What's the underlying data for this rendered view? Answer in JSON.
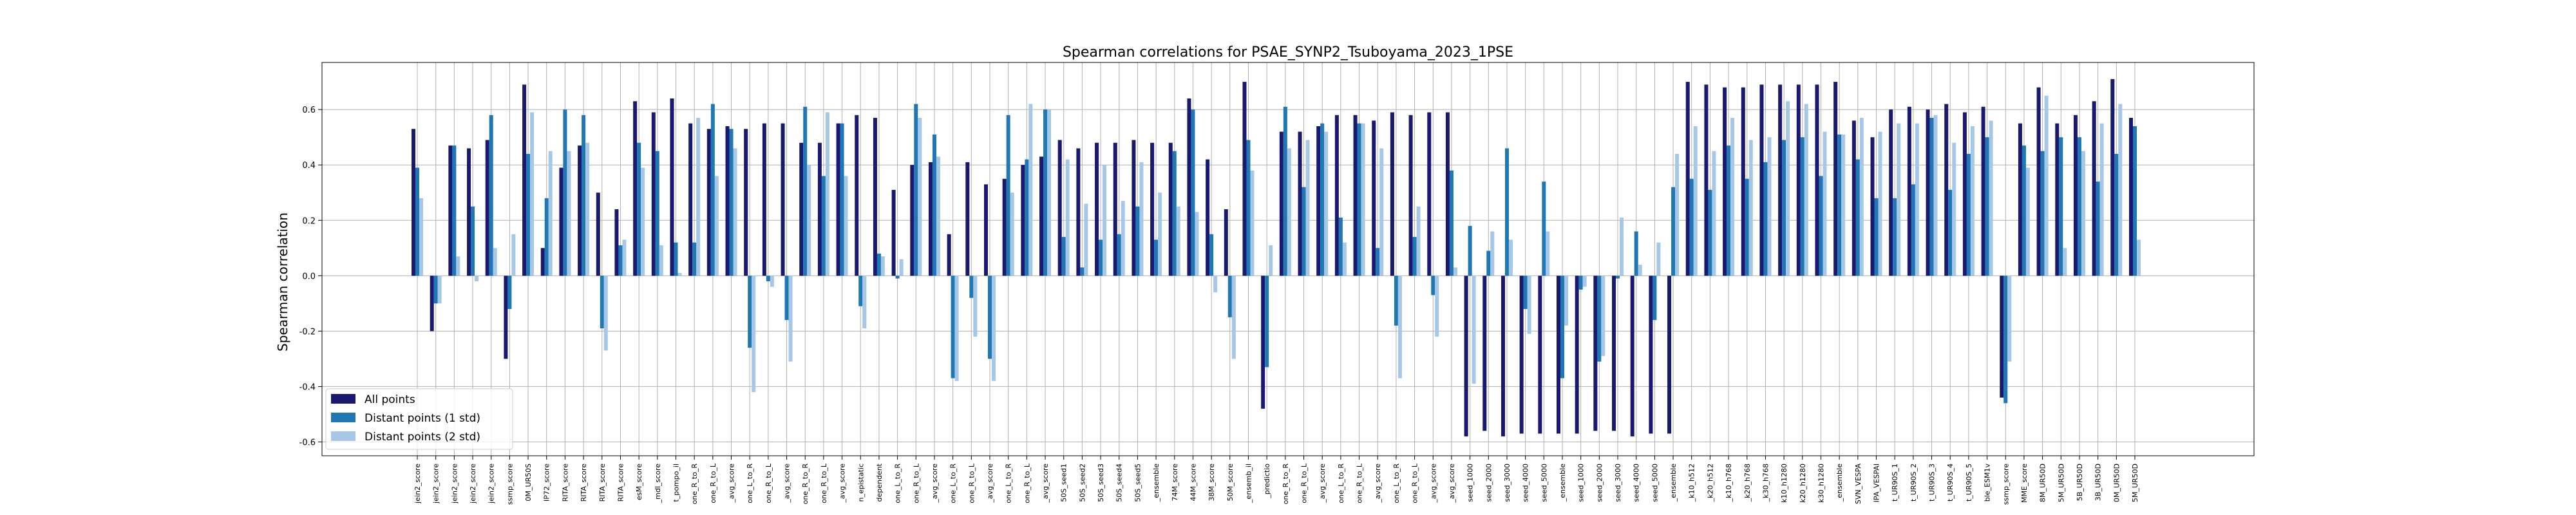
{
  "chart_data": {
    "type": "bar",
    "title": "Spearman correlations for PSAE_SYNP2_Tsuboyama_2023_1PSE",
    "xlabel": "",
    "ylabel": "Spearman correlation",
    "ylim": [
      -0.65,
      0.77
    ],
    "yticks": [
      -0.6,
      -0.4,
      -0.2,
      0.0,
      0.2,
      0.4,
      0.6
    ],
    "grid": true,
    "legend_position": "lower-left",
    "categories": [
      "jein2_score",
      "jein2_score",
      "jein2_score",
      "jein2_score",
      "jein2_score",
      "ssmp_score",
      "0M_UR50S",
      "IP72_score",
      "RITA_score",
      "RITA_score",
      "RITA_score",
      "RITA_score",
      "esM_score",
      "_mdl_score",
      "t_pompo_il",
      "one_R_to_R",
      "one_R_to_L",
      "_avg_score",
      "one_L_to_R",
      "one_R_to_L",
      "_avg_score",
      "one_R_to_R",
      "one_R_to_L",
      "_avg_score",
      "n_epistatic",
      "dependent",
      "one_L_to_R",
      "one_R_to_L",
      "_avg_score",
      "one_L_to_R",
      "one_R_to_L",
      "_avg_score",
      "one_L_to_R",
      "one_R_to_L",
      "_avg_score",
      "50S_seed1",
      "50S_seed2",
      "50S_seed3",
      "50S_seed4",
      "50S_seed5",
      "_ensemble",
      "74M_score",
      "44M_score",
      "38M_score",
      "50M_score",
      "_ensemb_il",
      "_predictio",
      "one_R_to_R",
      "one_R_to_L",
      "_avg_score",
      "one_L_to_R",
      "one_R_to_L",
      "_avg_score",
      "one_L_to_R",
      "one_R_to_L",
      "_avg_score",
      "_avg_score",
      "seed_1000",
      "seed_2000",
      "seed_3000",
      "seed_4000",
      "seed_5000",
      "_ensemble",
      "seed_1000",
      "seed_2000",
      "seed_3000",
      "seed_4000",
      "seed_5000",
      "_ensemble",
      "_k10_h512",
      "_k20_h512",
      "_k10_h768",
      "_k20_h768",
      "_k30_h768",
      "k10_h1280",
      "k20_h1280",
      "k30_h1280",
      "_ensemble",
      "SVN_VESPA",
      "IPA_VESPAI",
      "t_UR90S_1",
      "t_UR90S_2",
      "t_UR90S_3",
      "t_UR90S_4",
      "t_UR90S_5",
      "ble_ESM1v",
      "ssmp_score",
      "MME_score",
      "8M_UR50D",
      "5M_UR50D",
      "5B_UR50D",
      "3B_UR50D",
      "0M_UR50D",
      "5M_UR50D"
    ],
    "series": [
      {
        "name": "All points",
        "color": "#191970",
        "values": [
          0.53,
          -0.2,
          0.47,
          0.46,
          0.49,
          -0.3,
          0.69,
          0.1,
          0.39,
          0.47,
          0.3,
          0.24,
          0.63,
          0.59,
          0.64,
          0.55,
          0.53,
          0.54,
          0.53,
          0.55,
          0.55,
          0.48,
          0.48,
          0.55,
          0.58,
          0.57,
          0.31,
          0.4,
          0.41,
          0.15,
          0.41,
          0.33,
          0.35,
          0.4,
          0.43,
          0.49,
          0.46,
          0.48,
          0.48,
          0.49,
          0.48,
          0.48,
          0.64,
          0.42,
          0.24,
          0.7,
          -0.48,
          0.52,
          0.52,
          0.54,
          0.58,
          0.58,
          0.56,
          0.59,
          0.58,
          0.59,
          0.59,
          -0.58,
          -0.56,
          -0.58,
          -0.57,
          -0.57,
          -0.57,
          -0.57,
          -0.56,
          -0.56,
          -0.58,
          -0.57,
          -0.57,
          0.7,
          0.69,
          0.68,
          0.68,
          0.69,
          0.69,
          0.69,
          0.69,
          0.7,
          0.56,
          0.5,
          0.6,
          0.61,
          0.6,
          0.62,
          0.59,
          0.61,
          -0.44,
          0.55,
          0.68,
          0.55,
          0.58,
          0.63,
          0.71,
          0.57
        ]
      },
      {
        "name": "Distant points (1 std)",
        "color": "#1f77b4",
        "values": [
          0.39,
          -0.1,
          0.47,
          0.25,
          0.58,
          -0.12,
          0.44,
          0.28,
          0.6,
          0.58,
          -0.19,
          0.11,
          0.48,
          0.45,
          0.12,
          0.12,
          0.62,
          0.53,
          -0.26,
          -0.02,
          -0.16,
          0.61,
          0.36,
          0.55,
          -0.11,
          0.08,
          -0.01,
          0.62,
          0.51,
          -0.37,
          -0.08,
          -0.3,
          0.58,
          0.42,
          0.6,
          0.14,
          0.03,
          0.13,
          0.15,
          0.25,
          0.13,
          0.45,
          0.6,
          0.15,
          -0.15,
          0.49,
          -0.33,
          0.61,
          0.32,
          0.55,
          0.21,
          0.55,
          0.1,
          -0.18,
          0.14,
          -0.07,
          0.38,
          0.18,
          0.09,
          0.46,
          -0.12,
          0.34,
          -0.37,
          -0.05,
          -0.31,
          -0.01,
          0.16,
          -0.16,
          0.32,
          0.35,
          0.31,
          0.47,
          0.35,
          0.41,
          0.49,
          0.5,
          0.36,
          0.51,
          0.42,
          0.28,
          0.28,
          0.33,
          0.57,
          0.31,
          0.44,
          0.5,
          -0.46,
          0.47,
          0.45,
          0.5,
          0.5,
          0.34,
          0.44,
          0.54
        ]
      },
      {
        "name": "Distant points (2 std)",
        "color": "#a6c8e6",
        "values": [
          0.28,
          -0.1,
          0.07,
          -0.02,
          0.1,
          0.15,
          0.59,
          0.45,
          0.45,
          0.48,
          -0.27,
          0.13,
          0.39,
          0.11,
          0.01,
          0.57,
          0.36,
          0.46,
          -0.42,
          -0.04,
          -0.31,
          0.4,
          0.59,
          0.36,
          -0.19,
          0.07,
          0.06,
          0.57,
          0.43,
          -0.38,
          -0.22,
          -0.38,
          0.3,
          0.62,
          0.6,
          0.42,
          0.26,
          0.4,
          0.27,
          0.41,
          0.3,
          0.25,
          0.23,
          -0.06,
          -0.3,
          0.38,
          0.11,
          0.46,
          0.49,
          0.52,
          0.12,
          0.55,
          0.46,
          -0.37,
          0.25,
          -0.22,
          0.03,
          -0.39,
          0.16,
          0.13,
          -0.21,
          0.16,
          -0.18,
          -0.04,
          -0.29,
          0.21,
          0.04,
          0.12,
          0.44,
          0.54,
          0.45,
          0.57,
          0.49,
          0.5,
          0.63,
          0.62,
          0.52,
          0.51,
          0.57,
          0.52,
          0.55,
          0.55,
          0.58,
          0.48,
          0.54,
          0.56,
          -0.31,
          0.39,
          0.65,
          0.1,
          0.45,
          0.55,
          0.62,
          0.13
        ]
      }
    ]
  }
}
